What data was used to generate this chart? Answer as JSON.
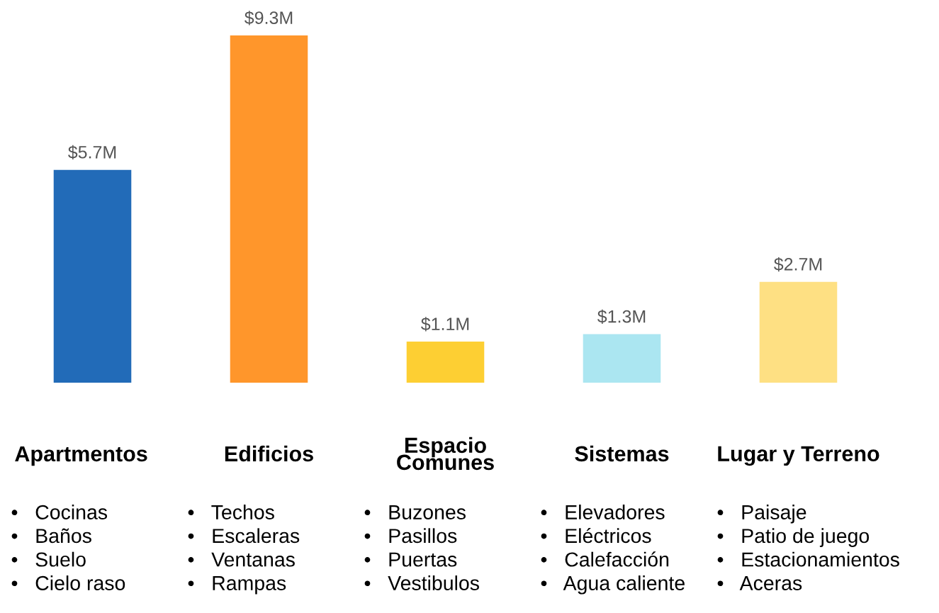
{
  "chart_data": {
    "type": "bar",
    "categories": [
      "Apartmentos",
      "Edificios",
      "Espacio\nComunes",
      "Sistemas",
      "Lugar y Terreno"
    ],
    "values": [
      5.7,
      9.3,
      1.1,
      1.3,
      2.7
    ],
    "colors": [
      "#226bb8",
      "#ff962b",
      "#fdcf33",
      "#abe6f1",
      "#fee083"
    ],
    "value_labels": [
      "$5.7M",
      "$9.3M",
      "$1.1M",
      "$1.3M",
      "$2.7M"
    ],
    "tick_labels": false,
    "annotations": [
      "•   Cocinas\n•   Baños\n•   Suelo\n•   Cielo raso",
      "•   Techos\n•   Escaleras\n•   Ventanas\n•   Rampas",
      "•   Buzones\n•   Pasillos\n•   Puertas\n•   Vestibulos",
      "•   Elevadores\n•   Eléctricos\n•   Calefacción\n•   Agua caliente",
      "•   Paisaje\n•   Patio de juego\n•   Estacionamientos\n•   Aceras"
    ]
  }
}
